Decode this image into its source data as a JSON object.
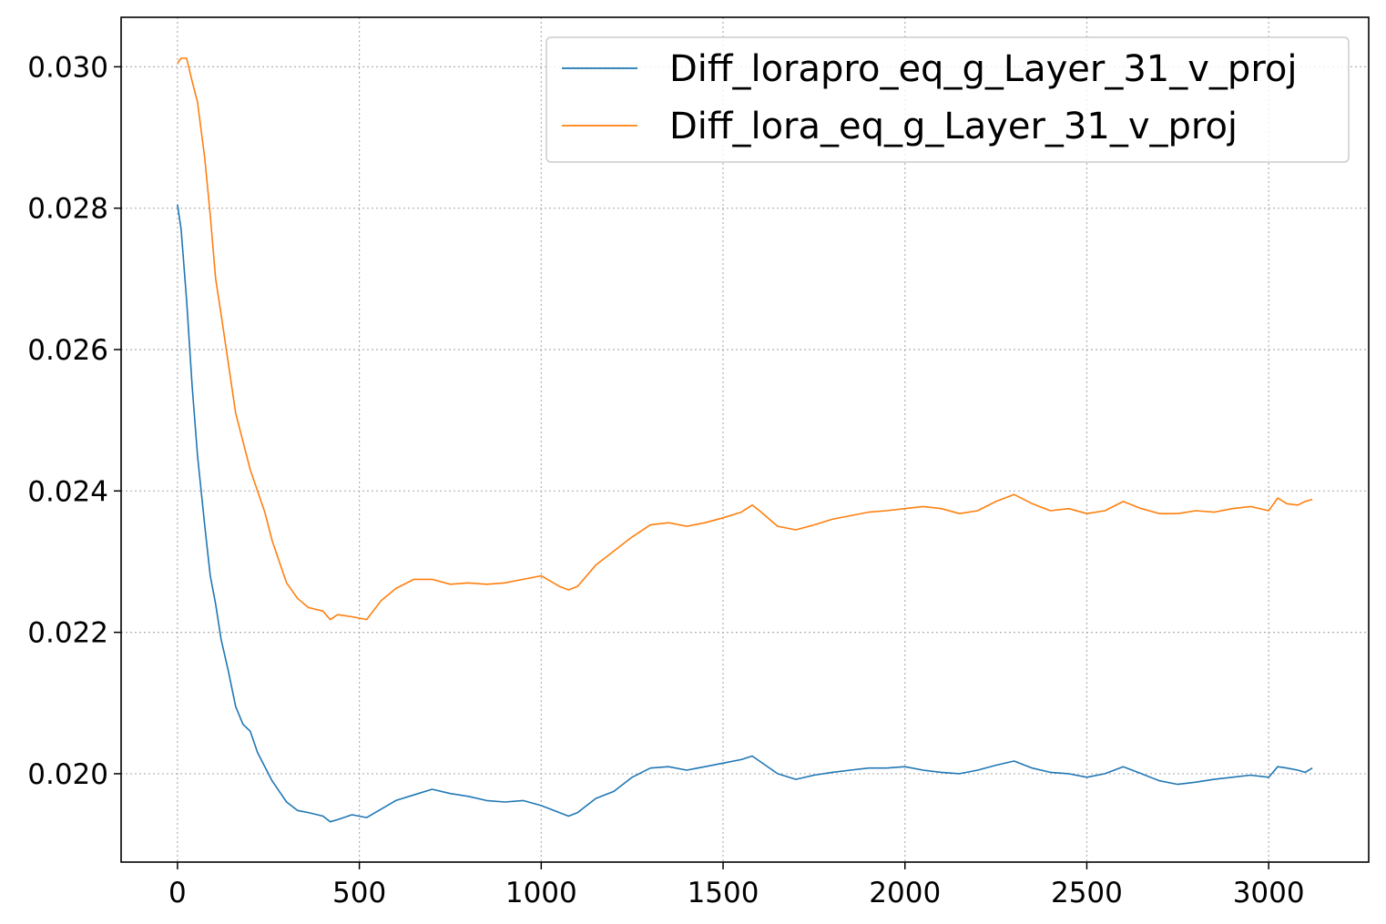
{
  "chart_data": {
    "type": "line",
    "title": "",
    "xlabel": "",
    "ylabel": "",
    "xlim": [
      -155,
      3275
    ],
    "ylim": [
      0.01875,
      0.0307
    ],
    "x_ticks": [
      0,
      500,
      1000,
      1500,
      2000,
      2500,
      3000
    ],
    "x_tick_labels": [
      "0",
      "500",
      "1000",
      "1500",
      "2000",
      "2500",
      "3000"
    ],
    "y_ticks": [
      0.02,
      0.022,
      0.024,
      0.026,
      0.028,
      0.03
    ],
    "y_tick_labels": [
      "0.020",
      "0.022",
      "0.024",
      "0.026",
      "0.028",
      "0.030"
    ],
    "grid": true,
    "legend_position": "top-right",
    "series": [
      {
        "name": "Diff_lorapro_eq_g_Layer_31_v_proj",
        "color": "#1f77b4",
        "x": [
          0,
          10,
          25,
          40,
          55,
          75,
          90,
          105,
          120,
          140,
          160,
          180,
          200,
          220,
          240,
          260,
          280,
          300,
          330,
          360,
          400,
          420,
          440,
          480,
          520,
          560,
          600,
          650,
          700,
          750,
          800,
          850,
          900,
          950,
          1000,
          1050,
          1075,
          1100,
          1150,
          1200,
          1250,
          1300,
          1350,
          1400,
          1450,
          1500,
          1550,
          1580,
          1600,
          1650,
          1700,
          1750,
          1800,
          1850,
          1900,
          1950,
          2000,
          2050,
          2100,
          2150,
          2200,
          2250,
          2300,
          2350,
          2400,
          2450,
          2500,
          2550,
          2600,
          2650,
          2700,
          2750,
          2800,
          2850,
          2900,
          2950,
          3000,
          3025,
          3050,
          3080,
          3100,
          3120
        ],
        "y": [
          0.02805,
          0.0277,
          0.0267,
          0.0255,
          0.0245,
          0.0235,
          0.0228,
          0.0224,
          0.0219,
          0.02145,
          0.02095,
          0.0207,
          0.0206,
          0.0203,
          0.0201,
          0.0199,
          0.01975,
          0.0196,
          0.01948,
          0.01945,
          0.0194,
          0.01932,
          0.01935,
          0.01942,
          0.01938,
          0.0195,
          0.01962,
          0.0197,
          0.01978,
          0.01972,
          0.01968,
          0.01962,
          0.0196,
          0.01962,
          0.01955,
          0.01945,
          0.0194,
          0.01945,
          0.01965,
          0.01975,
          0.01995,
          0.02008,
          0.0201,
          0.02005,
          0.0201,
          0.02015,
          0.0202,
          0.02025,
          0.02018,
          0.02,
          0.01992,
          0.01998,
          0.02002,
          0.02005,
          0.02008,
          0.02008,
          0.0201,
          0.02005,
          0.02002,
          0.02,
          0.02005,
          0.02012,
          0.02018,
          0.02008,
          0.02002,
          0.02,
          0.01995,
          0.02,
          0.0201,
          0.02,
          0.0199,
          0.01985,
          0.01988,
          0.01992,
          0.01995,
          0.01998,
          0.01995,
          0.0201,
          0.02008,
          0.02005,
          0.02002,
          0.02008
        ]
      },
      {
        "name": "Diff_lora_eq_g_Layer_31_v_proj",
        "color": "#ff7f0e",
        "x": [
          0,
          10,
          25,
          40,
          55,
          75,
          90,
          105,
          120,
          140,
          160,
          180,
          200,
          220,
          240,
          260,
          280,
          300,
          330,
          360,
          400,
          420,
          440,
          480,
          520,
          560,
          600,
          650,
          700,
          750,
          800,
          850,
          900,
          950,
          1000,
          1050,
          1075,
          1100,
          1150,
          1200,
          1250,
          1300,
          1350,
          1400,
          1450,
          1500,
          1550,
          1580,
          1600,
          1650,
          1700,
          1750,
          1800,
          1850,
          1900,
          1950,
          2000,
          2050,
          2100,
          2150,
          2200,
          2250,
          2300,
          2350,
          2400,
          2450,
          2500,
          2550,
          2600,
          2650,
          2700,
          2750,
          2800,
          2850,
          2900,
          2950,
          3000,
          3025,
          3050,
          3080,
          3100,
          3120
        ],
        "y": [
          0.03005,
          0.03012,
          0.03012,
          0.0298,
          0.0295,
          0.0287,
          0.0279,
          0.027,
          0.0265,
          0.0258,
          0.0251,
          0.0247,
          0.0243,
          0.024,
          0.0237,
          0.0233,
          0.023,
          0.0227,
          0.02248,
          0.02235,
          0.0223,
          0.02218,
          0.02225,
          0.02222,
          0.02218,
          0.02245,
          0.02262,
          0.02275,
          0.02275,
          0.02268,
          0.0227,
          0.02268,
          0.0227,
          0.02275,
          0.0228,
          0.02265,
          0.0226,
          0.02265,
          0.02295,
          0.02315,
          0.02335,
          0.02352,
          0.02355,
          0.0235,
          0.02355,
          0.02362,
          0.0237,
          0.0238,
          0.02372,
          0.0235,
          0.02345,
          0.02352,
          0.0236,
          0.02365,
          0.0237,
          0.02372,
          0.02375,
          0.02378,
          0.02375,
          0.02368,
          0.02372,
          0.02385,
          0.02395,
          0.02382,
          0.02372,
          0.02375,
          0.02368,
          0.02372,
          0.02385,
          0.02375,
          0.02368,
          0.02368,
          0.02372,
          0.0237,
          0.02375,
          0.02378,
          0.02372,
          0.0239,
          0.02382,
          0.0238,
          0.02385,
          0.02388
        ]
      }
    ]
  }
}
